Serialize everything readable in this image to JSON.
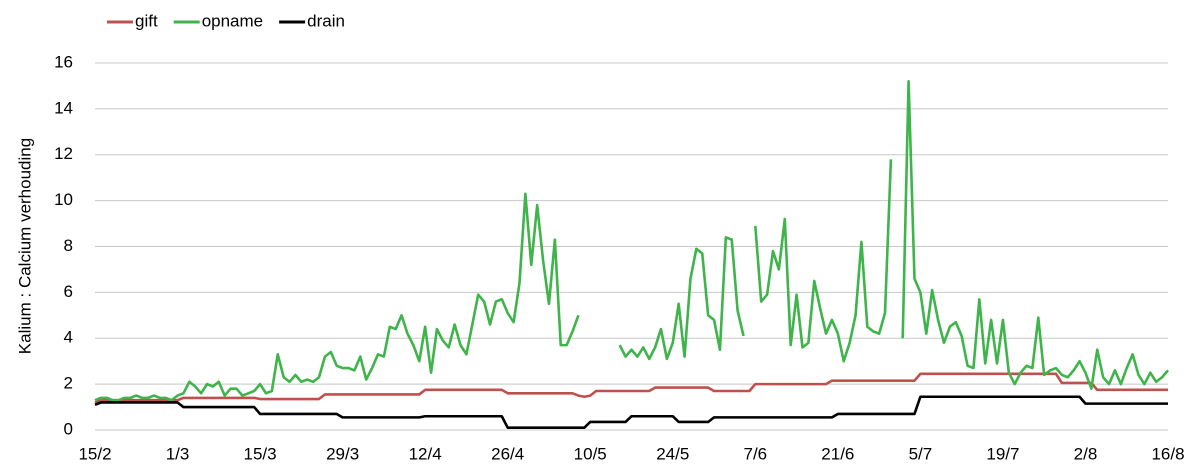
{
  "chart_data": {
    "type": "line",
    "y_label": "Kalium : Calcium verhouding",
    "categories": [
      "15/2",
      null,
      null,
      null,
      null,
      null,
      null,
      null,
      null,
      null,
      null,
      null,
      null,
      null,
      "1/3",
      null,
      null,
      null,
      null,
      null,
      null,
      null,
      null,
      null,
      null,
      null,
      null,
      null,
      "15/3",
      null,
      null,
      null,
      null,
      null,
      null,
      null,
      null,
      null,
      null,
      null,
      null,
      null,
      "29/3",
      null,
      null,
      null,
      null,
      null,
      null,
      null,
      null,
      null,
      null,
      null,
      null,
      null,
      "12/4",
      null,
      null,
      null,
      null,
      null,
      null,
      null,
      null,
      null,
      null,
      null,
      null,
      null,
      "26/4",
      null,
      null,
      null,
      null,
      null,
      null,
      null,
      null,
      null,
      null,
      null,
      null,
      null,
      "10/5",
      null,
      null,
      null,
      null,
      null,
      null,
      null,
      null,
      null,
      null,
      null,
      null,
      null,
      "24/5",
      null,
      null,
      null,
      null,
      null,
      null,
      null,
      null,
      null,
      null,
      null,
      null,
      null,
      "7/6",
      null,
      null,
      null,
      null,
      null,
      null,
      null,
      null,
      null,
      null,
      null,
      null,
      null,
      "21/6",
      null,
      null,
      null,
      null,
      null,
      null,
      null,
      null,
      null,
      null,
      null,
      null,
      null,
      "5/7",
      null,
      null,
      null,
      null,
      null,
      null,
      null,
      null,
      null,
      null,
      null,
      null,
      null,
      "19/7",
      null,
      null,
      null,
      null,
      null,
      null,
      null,
      null,
      null,
      null,
      null,
      null,
      null,
      "2/8",
      null,
      null,
      null,
      null,
      null,
      null,
      null,
      null,
      null,
      null,
      null,
      null,
      null,
      "16/8"
    ],
    "series": [
      {
        "name": "gift",
        "color": "#c0504d",
        "values": [
          1.2,
          1.3,
          1.3,
          1.3,
          1.3,
          1.3,
          1.3,
          1.3,
          1.3,
          1.3,
          1.3,
          1.3,
          1.3,
          1.3,
          1.3,
          1.4,
          1.4,
          1.4,
          1.4,
          1.4,
          1.4,
          1.4,
          1.4,
          1.4,
          1.4,
          1.4,
          1.4,
          1.4,
          1.35,
          1.35,
          1.35,
          1.35,
          1.35,
          1.35,
          1.35,
          1.35,
          1.35,
          1.35,
          1.35,
          1.55,
          1.55,
          1.55,
          1.55,
          1.55,
          1.55,
          1.55,
          1.55,
          1.55,
          1.55,
          1.55,
          1.55,
          1.55,
          1.55,
          1.55,
          1.55,
          1.55,
          1.75,
          1.75,
          1.75,
          1.75,
          1.75,
          1.75,
          1.75,
          1.75,
          1.75,
          1.75,
          1.75,
          1.75,
          1.75,
          1.75,
          1.6,
          1.6,
          1.6,
          1.6,
          1.6,
          1.6,
          1.6,
          1.6,
          1.6,
          1.6,
          1.6,
          1.6,
          1.5,
          1.45,
          1.5,
          1.7,
          1.7,
          1.7,
          1.7,
          1.7,
          1.7,
          1.7,
          1.7,
          1.7,
          1.7,
          1.85,
          1.85,
          1.85,
          1.85,
          1.85,
          1.85,
          1.85,
          1.85,
          1.85,
          1.85,
          1.7,
          1.7,
          1.7,
          1.7,
          1.7,
          1.7,
          1.7,
          2.0,
          2.0,
          2.0,
          2.0,
          2.0,
          2.0,
          2.0,
          2.0,
          2.0,
          2.0,
          2.0,
          2.0,
          2.0,
          2.15,
          2.15,
          2.15,
          2.15,
          2.15,
          2.15,
          2.15,
          2.15,
          2.15,
          2.15,
          2.15,
          2.15,
          2.15,
          2.15,
          2.15,
          2.45,
          2.45,
          2.45,
          2.45,
          2.45,
          2.45,
          2.45,
          2.45,
          2.45,
          2.45,
          2.45,
          2.45,
          2.45,
          2.45,
          2.45,
          2.45,
          2.45,
          2.45,
          2.45,
          2.45,
          2.45,
          2.45,
          2.45,
          2.45,
          2.05,
          2.05,
          2.05,
          2.05,
          2.05,
          2.05,
          1.75,
          1.75,
          1.75,
          1.75,
          1.75,
          1.75,
          1.75,
          1.75,
          1.75,
          1.75,
          1.75,
          1.75,
          1.75
        ]
      },
      {
        "name": "opname",
        "color": "#3fb44a",
        "values": [
          1.3,
          1.4,
          1.4,
          1.3,
          1.3,
          1.4,
          1.4,
          1.5,
          1.4,
          1.4,
          1.5,
          1.4,
          1.4,
          1.3,
          1.5,
          1.6,
          2.1,
          1.9,
          1.6,
          2.0,
          1.9,
          2.1,
          1.5,
          1.8,
          1.8,
          1.5,
          1.6,
          1.7,
          2.0,
          1.6,
          1.7,
          3.3,
          2.3,
          2.1,
          2.4,
          2.1,
          2.2,
          2.1,
          2.3,
          3.2,
          3.4,
          2.8,
          2.7,
          2.7,
          2.6,
          3.2,
          2.2,
          2.7,
          3.3,
          3.2,
          4.5,
          4.4,
          5.0,
          4.2,
          3.7,
          3.0,
          4.5,
          2.5,
          4.4,
          3.9,
          3.6,
          4.6,
          3.7,
          3.3,
          4.6,
          5.9,
          5.6,
          4.6,
          5.6,
          5.7,
          5.1,
          4.7,
          6.4,
          10.3,
          7.2,
          9.8,
          7.4,
          5.5,
          8.3,
          3.7,
          3.7,
          4.3,
          5.0,
          null,
          null,
          null,
          null,
          null,
          null,
          3.7,
          3.2,
          3.5,
          3.2,
          3.6,
          3.1,
          3.6,
          4.4,
          3.1,
          3.8,
          5.5,
          3.2,
          6.6,
          7.9,
          7.7,
          5.0,
          4.8,
          3.5,
          8.4,
          8.3,
          5.2,
          4.1,
          null,
          8.9,
          5.6,
          5.9,
          7.8,
          7.0,
          9.2,
          3.7,
          5.9,
          3.6,
          3.8,
          6.5,
          5.3,
          4.2,
          4.8,
          4.2,
          3.0,
          3.8,
          5.0,
          8.2,
          4.5,
          4.3,
          4.2,
          5.1,
          11.8,
          null,
          4.0,
          15.2,
          6.6,
          6.0,
          4.2,
          6.1,
          4.8,
          3.8,
          4.5,
          4.7,
          4.1,
          2.8,
          2.7,
          5.7,
          2.9,
          4.8,
          2.9,
          4.8,
          2.5,
          2.0,
          2.5,
          2.8,
          2.7,
          4.9,
          2.4,
          2.6,
          2.7,
          2.4,
          2.3,
          2.6,
          3.0,
          2.5,
          1.8,
          3.5,
          2.3,
          2.0,
          2.6,
          2.0,
          2.7,
          3.3,
          2.4,
          2.0,
          2.5,
          2.1,
          2.3,
          2.6
        ]
      },
      {
        "name": "drain",
        "color": "#000000",
        "values": [
          1.1,
          1.2,
          1.2,
          1.2,
          1.2,
          1.2,
          1.2,
          1.2,
          1.2,
          1.2,
          1.2,
          1.2,
          1.2,
          1.2,
          1.2,
          1.0,
          1.0,
          1.0,
          1.0,
          1.0,
          1.0,
          1.0,
          1.0,
          1.0,
          1.0,
          1.0,
          1.0,
          1.0,
          0.7,
          0.7,
          0.7,
          0.7,
          0.7,
          0.7,
          0.7,
          0.7,
          0.7,
          0.7,
          0.7,
          0.7,
          0.7,
          0.7,
          0.55,
          0.55,
          0.55,
          0.55,
          0.55,
          0.55,
          0.55,
          0.55,
          0.55,
          0.55,
          0.55,
          0.55,
          0.55,
          0.55,
          0.6,
          0.6,
          0.6,
          0.6,
          0.6,
          0.6,
          0.6,
          0.6,
          0.6,
          0.6,
          0.6,
          0.6,
          0.6,
          0.6,
          0.1,
          0.1,
          0.1,
          0.1,
          0.1,
          0.1,
          0.1,
          0.1,
          0.1,
          0.1,
          0.1,
          0.1,
          0.1,
          0.1,
          0.35,
          0.35,
          0.35,
          0.35,
          0.35,
          0.35,
          0.35,
          0.6,
          0.6,
          0.6,
          0.6,
          0.6,
          0.6,
          0.6,
          0.6,
          0.35,
          0.35,
          0.35,
          0.35,
          0.35,
          0.35,
          0.55,
          0.55,
          0.55,
          0.55,
          0.55,
          0.55,
          0.55,
          0.55,
          0.55,
          0.55,
          0.55,
          0.55,
          0.55,
          0.55,
          0.55,
          0.55,
          0.55,
          0.55,
          0.55,
          0.55,
          0.55,
          0.7,
          0.7,
          0.7,
          0.7,
          0.7,
          0.7,
          0.7,
          0.7,
          0.7,
          0.7,
          0.7,
          0.7,
          0.7,
          0.7,
          1.45,
          1.45,
          1.45,
          1.45,
          1.45,
          1.45,
          1.45,
          1.45,
          1.45,
          1.45,
          1.45,
          1.45,
          1.45,
          1.45,
          1.45,
          1.45,
          1.45,
          1.45,
          1.45,
          1.45,
          1.45,
          1.45,
          1.45,
          1.45,
          1.45,
          1.45,
          1.45,
          1.45,
          1.15,
          1.15,
          1.15,
          1.15,
          1.15,
          1.15,
          1.15,
          1.15,
          1.15,
          1.15,
          1.15,
          1.15,
          1.15,
          1.15,
          1.15
        ]
      }
    ],
    "ylim": [
      0,
      16
    ],
    "yticks": [
      0,
      2,
      4,
      6,
      8,
      10,
      12,
      14,
      16
    ],
    "grid": true,
    "legend": "top-left"
  }
}
